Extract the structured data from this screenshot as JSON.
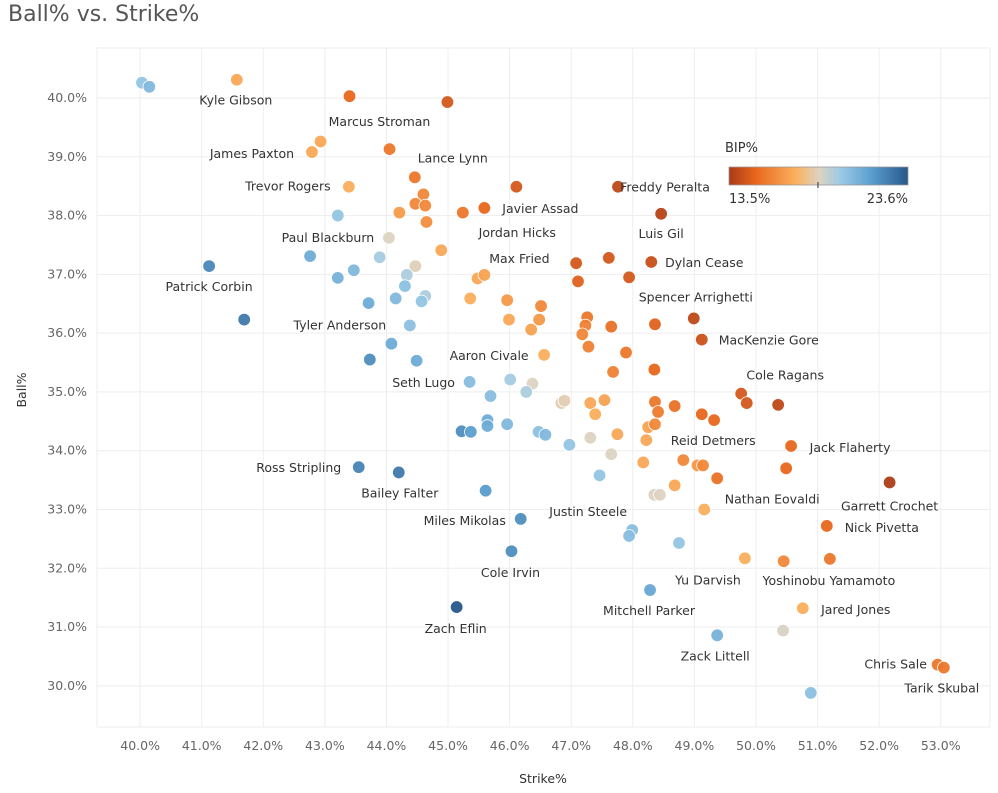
{
  "title": "Ball% vs. Strike%",
  "chart_data": {
    "type": "scatter",
    "title": "Ball% vs. Strike%",
    "xlabel": "Strike%",
    "ylabel": "Ball%",
    "xlim": [
      39.3,
      53.8
    ],
    "ylim": [
      29.3,
      40.85
    ],
    "x_ticks": [
      "40.0%",
      "41.0%",
      "42.0%",
      "43.0%",
      "44.0%",
      "45.0%",
      "46.0%",
      "47.0%",
      "48.0%",
      "49.0%",
      "50.0%",
      "51.0%",
      "52.0%",
      "53.0%"
    ],
    "y_ticks": [
      "30.0%",
      "31.0%",
      "32.0%",
      "33.0%",
      "34.0%",
      "35.0%",
      "36.0%",
      "37.0%",
      "38.0%",
      "39.0%",
      "40.0%"
    ],
    "grid": true,
    "color_legend": {
      "title": "BIP%",
      "min_label": "13.5%",
      "max_label": "23.6%",
      "min": 13.5,
      "max": 23.6,
      "placement": "top-right",
      "colors": [
        "#a93a16",
        "#e8671d",
        "#fbb25f",
        "#ddd3c2",
        "#9ccae6",
        "#5b9fd0",
        "#27578a"
      ]
    },
    "points": [
      {
        "strike": 40.03,
        "ball": 40.26,
        "bip": 20.0
      },
      {
        "strike": 40.15,
        "ball": 40.19,
        "bip": 20.5
      },
      {
        "strike": 41.57,
        "ball": 40.31,
        "bip": 17.0,
        "name": "Kyle Gibson"
      },
      {
        "strike": 43.4,
        "ball": 40.03,
        "bip": 15.0,
        "name": "Marcus Stroman"
      },
      {
        "strike": 44.99,
        "ball": 39.93,
        "bip": 14.5
      },
      {
        "strike": 42.93,
        "ball": 39.26,
        "bip": 17.0
      },
      {
        "strike": 42.79,
        "ball": 39.08,
        "bip": 17.0,
        "name": "James Paxton"
      },
      {
        "strike": 44.05,
        "ball": 39.13,
        "bip": 15.5
      },
      {
        "strike": 44.46,
        "ball": 38.65,
        "bip": 15.5,
        "name": "Lance Lynn"
      },
      {
        "strike": 46.11,
        "ball": 38.49,
        "bip": 14.5
      },
      {
        "strike": 47.76,
        "ball": 38.49,
        "bip": 14.0,
        "name": "Freddy Peralta"
      },
      {
        "strike": 43.39,
        "ball": 38.49,
        "bip": 17.2,
        "name": "Trevor Rogers"
      },
      {
        "strike": 44.6,
        "ball": 38.36,
        "bip": 16.0
      },
      {
        "strike": 44.47,
        "ball": 38.2,
        "bip": 16.0
      },
      {
        "strike": 44.63,
        "ball": 38.17,
        "bip": 16.0
      },
      {
        "strike": 44.21,
        "ball": 38.05,
        "bip": 16.6
      },
      {
        "strike": 44.65,
        "ball": 37.89,
        "bip": 16.2
      },
      {
        "strike": 45.24,
        "ball": 38.05,
        "bip": 15.5
      },
      {
        "strike": 45.59,
        "ball": 38.13,
        "bip": 15.0,
        "name": "Javier Assad"
      },
      {
        "strike": 48.46,
        "ball": 38.03,
        "bip": 13.8,
        "name": "Luis Gil"
      },
      {
        "strike": 43.21,
        "ball": 38.0,
        "bip": 20.0
      },
      {
        "strike": 44.04,
        "ball": 37.62,
        "bip": 18.6,
        "name": "Paul Blackburn"
      },
      {
        "strike": 44.89,
        "ball": 37.41,
        "bip": 17.0,
        "name": "Jordan Hicks"
      },
      {
        "strike": 42.76,
        "ball": 37.31,
        "bip": 21.0
      },
      {
        "strike": 43.89,
        "ball": 37.29,
        "bip": 19.6
      },
      {
        "strike": 44.47,
        "ball": 37.14,
        "bip": 18.5
      },
      {
        "strike": 41.12,
        "ball": 37.14,
        "bip": 22.2,
        "name": "Patrick Corbin"
      },
      {
        "strike": 43.47,
        "ball": 37.07,
        "bip": 20.5
      },
      {
        "strike": 44.33,
        "ball": 36.99,
        "bip": 19.5
      },
      {
        "strike": 43.21,
        "ball": 36.94,
        "bip": 20.8
      },
      {
        "strike": 44.3,
        "ball": 36.8,
        "bip": 20.2
      },
      {
        "strike": 44.63,
        "ball": 36.63,
        "bip": 19.5
      },
      {
        "strike": 44.57,
        "ball": 36.54,
        "bip": 20.0
      },
      {
        "strike": 43.71,
        "ball": 36.51,
        "bip": 21.0
      },
      {
        "strike": 44.15,
        "ball": 36.59,
        "bip": 20.5
      },
      {
        "strike": 41.69,
        "ball": 36.23,
        "bip": 22.6
      },
      {
        "strike": 44.38,
        "ball": 36.13,
        "bip": 20.2,
        "name": "Tyler Anderson"
      },
      {
        "strike": 44.08,
        "ball": 35.82,
        "bip": 21.0
      },
      {
        "strike": 43.73,
        "ball": 35.55,
        "bip": 22.0
      },
      {
        "strike": 44.49,
        "ball": 35.53,
        "bip": 21.0
      },
      {
        "strike": 45.48,
        "ball": 36.93,
        "bip": 17.0
      },
      {
        "strike": 45.59,
        "ball": 36.99,
        "bip": 16.8,
        "name": "Max Fried"
      },
      {
        "strike": 45.36,
        "ball": 36.59,
        "bip": 17.2
      },
      {
        "strike": 45.96,
        "ball": 36.56,
        "bip": 16.5
      },
      {
        "strike": 45.99,
        "ball": 36.23,
        "bip": 17.0
      },
      {
        "strike": 46.51,
        "ball": 36.46,
        "bip": 16.0
      },
      {
        "strike": 46.48,
        "ball": 36.23,
        "bip": 16.5
      },
      {
        "strike": 46.35,
        "ball": 36.06,
        "bip": 16.8
      },
      {
        "strike": 46.56,
        "ball": 35.63,
        "bip": 17.2,
        "name": "Aaron Civale"
      },
      {
        "strike": 47.08,
        "ball": 37.19,
        "bip": 14.5
      },
      {
        "strike": 47.61,
        "ball": 37.28,
        "bip": 14.5
      },
      {
        "strike": 47.94,
        "ball": 36.95,
        "bip": 14.5
      },
      {
        "strike": 48.3,
        "ball": 37.21,
        "bip": 14.2,
        "name": "Dylan Cease"
      },
      {
        "strike": 47.11,
        "ball": 36.88,
        "bip": 14.8
      },
      {
        "strike": 47.26,
        "ball": 36.27,
        "bip": 15.5
      },
      {
        "strike": 47.23,
        "ball": 36.13,
        "bip": 15.8
      },
      {
        "strike": 47.18,
        "ball": 35.98,
        "bip": 16.0
      },
      {
        "strike": 47.28,
        "ball": 35.77,
        "bip": 15.8
      },
      {
        "strike": 47.65,
        "ball": 36.11,
        "bip": 15.3
      },
      {
        "strike": 48.36,
        "ball": 36.15,
        "bip": 14.8
      },
      {
        "strike": 48.99,
        "ball": 36.25,
        "bip": 14.0,
        "name": "Spencer Arrighetti"
      },
      {
        "strike": 49.12,
        "ball": 35.89,
        "bip": 14.3,
        "name": "MacKenzie Gore"
      },
      {
        "strike": 47.89,
        "ball": 35.67,
        "bip": 15.5
      },
      {
        "strike": 47.68,
        "ball": 35.34,
        "bip": 15.8
      },
      {
        "strike": 48.35,
        "ball": 35.38,
        "bip": 15.0
      },
      {
        "strike": 45.35,
        "ball": 35.17,
        "bip": 20.3,
        "name": "Seth Lugo"
      },
      {
        "strike": 46.01,
        "ball": 35.21,
        "bip": 19.6
      },
      {
        "strike": 46.37,
        "ball": 35.14,
        "bip": 18.6
      },
      {
        "strike": 46.27,
        "ball": 35.0,
        "bip": 19.5
      },
      {
        "strike": 45.69,
        "ball": 34.93,
        "bip": 20.3
      },
      {
        "strike": 46.84,
        "ball": 34.81,
        "bip": 18.4
      },
      {
        "strike": 46.89,
        "ball": 34.85,
        "bip": 18.4
      },
      {
        "strike": 47.31,
        "ball": 34.81,
        "bip": 17.0
      },
      {
        "strike": 47.54,
        "ball": 34.86,
        "bip": 16.8
      },
      {
        "strike": 47.39,
        "ball": 34.62,
        "bip": 17.2
      },
      {
        "strike": 48.36,
        "ball": 34.83,
        "bip": 15.5
      },
      {
        "strike": 48.41,
        "ball": 34.66,
        "bip": 15.6
      },
      {
        "strike": 48.68,
        "ball": 34.76,
        "bip": 15.3
      },
      {
        "strike": 49.12,
        "ball": 34.62,
        "bip": 15.0
      },
      {
        "strike": 49.32,
        "ball": 34.52,
        "bip": 15.0
      },
      {
        "strike": 49.76,
        "ball": 34.97,
        "bip": 14.5,
        "name": "Cole Ragans"
      },
      {
        "strike": 49.85,
        "ball": 34.81,
        "bip": 14.5
      },
      {
        "strike": 50.36,
        "ball": 34.78,
        "bip": 14.0
      },
      {
        "strike": 45.64,
        "ball": 34.52,
        "bip": 21.0
      },
      {
        "strike": 45.64,
        "ball": 34.42,
        "bip": 21.0
      },
      {
        "strike": 45.22,
        "ball": 34.33,
        "bip": 22.0
      },
      {
        "strike": 45.37,
        "ball": 34.32,
        "bip": 21.5
      },
      {
        "strike": 45.96,
        "ball": 34.45,
        "bip": 20.5
      },
      {
        "strike": 46.47,
        "ball": 34.32,
        "bip": 20.2
      },
      {
        "strike": 46.58,
        "ball": 34.27,
        "bip": 20.5
      },
      {
        "strike": 46.97,
        "ball": 34.1,
        "bip": 20.0
      },
      {
        "strike": 47.31,
        "ball": 34.22,
        "bip": 18.6
      },
      {
        "strike": 47.75,
        "ball": 34.28,
        "bip": 17.0
      },
      {
        "strike": 48.25,
        "ball": 34.4,
        "bip": 16.8,
        "name": "Reid Detmers"
      },
      {
        "strike": 48.36,
        "ball": 34.45,
        "bip": 16.0
      },
      {
        "strike": 48.22,
        "ball": 34.18,
        "bip": 17.0
      },
      {
        "strike": 47.65,
        "ball": 33.94,
        "bip": 18.6
      },
      {
        "strike": 47.46,
        "ball": 33.58,
        "bip": 20.0
      },
      {
        "strike": 48.17,
        "ball": 33.8,
        "bip": 17.0
      },
      {
        "strike": 48.82,
        "ball": 33.84,
        "bip": 16.0
      },
      {
        "strike": 49.05,
        "ball": 33.75,
        "bip": 16.5
      },
      {
        "strike": 49.14,
        "ball": 33.75,
        "bip": 16.0
      },
      {
        "strike": 49.37,
        "ball": 33.53,
        "bip": 15.3,
        "name": "Nathan Eovaldi"
      },
      {
        "strike": 48.68,
        "ball": 33.41,
        "bip": 17.0
      },
      {
        "strike": 48.35,
        "ball": 33.25,
        "bip": 18.6
      },
      {
        "strike": 48.44,
        "ball": 33.25,
        "bip": 18.6
      },
      {
        "strike": 49.16,
        "ball": 33.0,
        "bip": 17.2
      },
      {
        "strike": 50.57,
        "ball": 34.08,
        "bip": 15.0,
        "name": "Jack Flaherty"
      },
      {
        "strike": 50.49,
        "ball": 33.7,
        "bip": 15.0
      },
      {
        "strike": 52.17,
        "ball": 33.46,
        "bip": 13.6,
        "name": "Garrett Crochet"
      },
      {
        "strike": 51.15,
        "ball": 32.72,
        "bip": 15.0,
        "name": "Nick Pivetta"
      },
      {
        "strike": 43.55,
        "ball": 33.72,
        "bip": 22.3,
        "name": "Ross Stripling"
      },
      {
        "strike": 44.2,
        "ball": 33.63,
        "bip": 22.6,
        "name": "Bailey Falter"
      },
      {
        "strike": 45.61,
        "ball": 33.32,
        "bip": 21.6
      },
      {
        "strike": 46.18,
        "ball": 32.84,
        "bip": 22.0,
        "name": "Miles Mikolas"
      },
      {
        "strike": 46.03,
        "ball": 32.29,
        "bip": 22.0,
        "name": "Cole Irvin"
      },
      {
        "strike": 47.99,
        "ball": 32.65,
        "bip": 20.3,
        "name": "Justin Steele"
      },
      {
        "strike": 47.94,
        "ball": 32.55,
        "bip": 20.3
      },
      {
        "strike": 48.75,
        "ball": 32.43,
        "bip": 20.0
      },
      {
        "strike": 49.82,
        "ball": 32.17,
        "bip": 17.2,
        "name": "Yu Darvish"
      },
      {
        "strike": 50.45,
        "ball": 32.12,
        "bip": 16.0
      },
      {
        "strike": 51.2,
        "ball": 32.16,
        "bip": 15.5,
        "name": "Yoshinobu Yamamoto"
      },
      {
        "strike": 48.28,
        "ball": 31.63,
        "bip": 21.2,
        "name": "Mitchell Parker"
      },
      {
        "strike": 45.14,
        "ball": 31.34,
        "bip": 23.6,
        "name": "Zach Eflin"
      },
      {
        "strike": 50.76,
        "ball": 31.32,
        "bip": 17.2,
        "name": "Jared Jones"
      },
      {
        "strike": 50.44,
        "ball": 30.94,
        "bip": 18.7
      },
      {
        "strike": 49.37,
        "ball": 30.86,
        "bip": 20.8,
        "name": "Zack Littell"
      },
      {
        "strike": 52.95,
        "ball": 30.36,
        "bip": 15.5,
        "name": "Chris Sale"
      },
      {
        "strike": 53.05,
        "ball": 30.31,
        "bip": 15.5,
        "name": "Tarik Skubal"
      },
      {
        "strike": 50.89,
        "ball": 29.88,
        "bip": 20.2
      }
    ]
  }
}
